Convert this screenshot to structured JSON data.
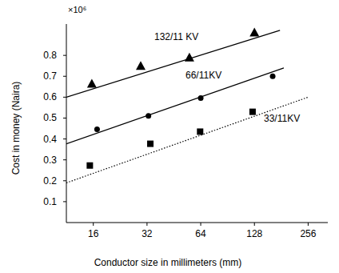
{
  "chart_data": {
    "type": "scatter",
    "x_label": "Conductor size in millimeters (mm)",
    "y_label": "Cost in money (Naira)",
    "annotations": [
      "×10⁶"
    ],
    "log": "x",
    "grid": false,
    "xlim": [
      11.3,
      330
    ],
    "xticks": [
      16,
      32,
      64,
      128,
      256
    ],
    "ylim": [
      0,
      0.95
    ],
    "yticks": [
      0.1,
      0.2,
      0.3,
      0.4,
      0.5,
      0.6,
      0.7,
      0.8
    ],
    "series": [
      {
        "name": "132/11 KV",
        "color": "#000000",
        "marker": "triangle",
        "line_style": "solid",
        "x": [
          15.7,
          29.5,
          55.3,
          128
        ],
        "values": [
          0.665,
          0.75,
          0.79,
          0.91
        ],
        "trend": {
          "x": [
            11.3,
            178
          ],
          "values": [
            0.6,
            0.92
          ]
        }
      },
      {
        "name": "66/11KV",
        "color": "#000000",
        "marker": "circle",
        "line_style": "solid",
        "x": [
          16.8,
          32.6,
          64,
          162
        ],
        "values": [
          0.446,
          0.51,
          0.596,
          0.7
        ],
        "trend": {
          "x": [
            11.3,
            187
          ],
          "values": [
            0.377,
            0.74
          ]
        }
      },
      {
        "name": "33/11KV",
        "color": "#000000",
        "marker": "square",
        "line_style": "dotted",
        "x": [
          15.3,
          33.4,
          63.5,
          125
        ],
        "values": [
          0.273,
          0.377,
          0.435,
          0.53
        ],
        "trend": {
          "x": [
            11.3,
            256
          ],
          "values": [
            0.19,
            0.6
          ]
        }
      }
    ]
  }
}
